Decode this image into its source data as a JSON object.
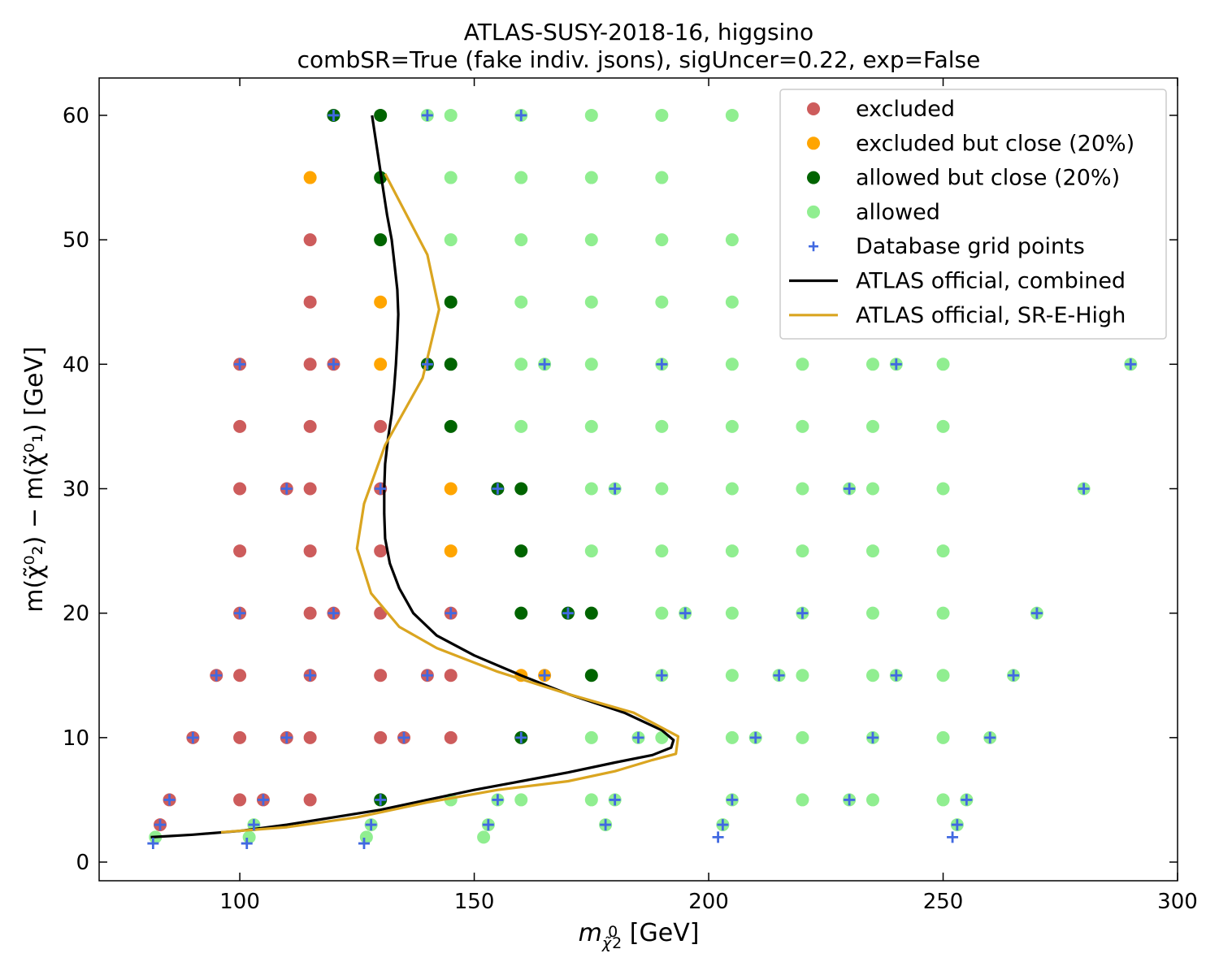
{
  "chart_data": {
    "type": "scatter",
    "title": "ATLAS-SUSY-2018-16, higgsino",
    "subtitle": "combSR=True (fake indiv. jsons), sigUncer=0.22, exp=False",
    "xlabel": {
      "symbol": "m",
      "sub": "χ̃",
      "subsup": "0",
      "subsub": "2",
      "unit": " [GeV]"
    },
    "ylabel": {
      "text": "m(χ̃⁰₂) − m(χ̃⁰₁) [GeV]",
      "unit": " [GeV]"
    },
    "xlim": [
      70,
      300
    ],
    "ylim": [
      -1.5,
      63
    ],
    "xticks": [
      100,
      150,
      200,
      250,
      300
    ],
    "yticks": [
      0,
      10,
      20,
      30,
      40,
      50,
      60
    ],
    "legend_position": "top-right",
    "colors": {
      "excluded": "#cd5c5c",
      "excluded_close": "#ffa500",
      "allowed_close": "#006400",
      "allowed": "#90ee90",
      "grid_points": "#4169e1",
      "combined_line": "#000000",
      "sr_line": "#daa520"
    },
    "series": [
      {
        "name": "excluded",
        "kind": "point",
        "color": "#cd5c5c",
        "points": [
          [
            83,
            3
          ],
          [
            85,
            5
          ],
          [
            90,
            10
          ],
          [
            95,
            15
          ],
          [
            100,
            40
          ],
          [
            100,
            35
          ],
          [
            100,
            30
          ],
          [
            100,
            25
          ],
          [
            100,
            20
          ],
          [
            100,
            15
          ],
          [
            100,
            10
          ],
          [
            100,
            5
          ],
          [
            105,
            5
          ],
          [
            110,
            30
          ],
          [
            110,
            10
          ],
          [
            115,
            50
          ],
          [
            115,
            45
          ],
          [
            115,
            40
          ],
          [
            115,
            35
          ],
          [
            115,
            30
          ],
          [
            115,
            25
          ],
          [
            115,
            20
          ],
          [
            115,
            15
          ],
          [
            115,
            10
          ],
          [
            115,
            5
          ],
          [
            120,
            40
          ],
          [
            120,
            20
          ],
          [
            130,
            35
          ],
          [
            130,
            30
          ],
          [
            130,
            25
          ],
          [
            130,
            20
          ],
          [
            130,
            15
          ],
          [
            130,
            10
          ],
          [
            135,
            10
          ],
          [
            140,
            15
          ],
          [
            145,
            20
          ],
          [
            145,
            15
          ],
          [
            145,
            10
          ]
        ]
      },
      {
        "name": "excluded but close (20%)",
        "kind": "point",
        "color": "#ffa500",
        "points": [
          [
            115,
            55
          ],
          [
            130,
            45
          ],
          [
            130,
            40
          ],
          [
            145,
            30
          ],
          [
            145,
            25
          ],
          [
            160,
            15
          ],
          [
            165,
            15
          ]
        ]
      },
      {
        "name": "allowed but close (20%)",
        "kind": "point",
        "color": "#006400",
        "points": [
          [
            120,
            60
          ],
          [
            130,
            60
          ],
          [
            130,
            55
          ],
          [
            130,
            50
          ],
          [
            145,
            45
          ],
          [
            140,
            40
          ],
          [
            145,
            40
          ],
          [
            145,
            35
          ],
          [
            155,
            30
          ],
          [
            160,
            30
          ],
          [
            160,
            25
          ],
          [
            160,
            20
          ],
          [
            170,
            20
          ],
          [
            175,
            20
          ],
          [
            175,
            15
          ],
          [
            160,
            10
          ],
          [
            130,
            5
          ]
        ]
      },
      {
        "name": "allowed",
        "kind": "point",
        "color": "#90ee90",
        "points": [
          [
            140,
            60
          ],
          [
            145,
            60
          ],
          [
            160,
            60
          ],
          [
            175,
            60
          ],
          [
            190,
            60
          ],
          [
            205,
            60
          ],
          [
            145,
            55
          ],
          [
            160,
            55
          ],
          [
            175,
            55
          ],
          [
            190,
            55
          ],
          [
            145,
            50
          ],
          [
            160,
            50
          ],
          [
            175,
            50
          ],
          [
            190,
            50
          ],
          [
            205,
            50
          ],
          [
            160,
            45
          ],
          [
            175,
            45
          ],
          [
            190,
            45
          ],
          [
            205,
            45
          ],
          [
            160,
            40
          ],
          [
            165,
            40
          ],
          [
            175,
            40
          ],
          [
            190,
            40
          ],
          [
            205,
            40
          ],
          [
            220,
            40
          ],
          [
            235,
            40
          ],
          [
            240,
            40
          ],
          [
            250,
            40
          ],
          [
            290,
            40
          ],
          [
            160,
            35
          ],
          [
            175,
            35
          ],
          [
            190,
            35
          ],
          [
            205,
            35
          ],
          [
            220,
            35
          ],
          [
            235,
            35
          ],
          [
            250,
            35
          ],
          [
            175,
            30
          ],
          [
            180,
            30
          ],
          [
            190,
            30
          ],
          [
            205,
            30
          ],
          [
            220,
            30
          ],
          [
            230,
            30
          ],
          [
            235,
            30
          ],
          [
            250,
            30
          ],
          [
            280,
            30
          ],
          [
            175,
            25
          ],
          [
            190,
            25
          ],
          [
            205,
            25
          ],
          [
            220,
            25
          ],
          [
            235,
            25
          ],
          [
            250,
            25
          ],
          [
            190,
            20
          ],
          [
            195,
            20
          ],
          [
            205,
            20
          ],
          [
            220,
            20
          ],
          [
            235,
            20
          ],
          [
            250,
            20
          ],
          [
            270,
            20
          ],
          [
            190,
            15
          ],
          [
            205,
            15
          ],
          [
            215,
            15
          ],
          [
            220,
            15
          ],
          [
            235,
            15
          ],
          [
            240,
            15
          ],
          [
            250,
            15
          ],
          [
            265,
            15
          ],
          [
            175,
            10
          ],
          [
            185,
            10
          ],
          [
            190,
            10
          ],
          [
            205,
            10
          ],
          [
            210,
            10
          ],
          [
            220,
            10
          ],
          [
            235,
            10
          ],
          [
            250,
            10
          ],
          [
            260,
            10
          ],
          [
            145,
            5
          ],
          [
            155,
            5
          ],
          [
            160,
            5
          ],
          [
            175,
            5
          ],
          [
            180,
            5
          ],
          [
            205,
            5
          ],
          [
            220,
            5
          ],
          [
            230,
            5
          ],
          [
            235,
            5
          ],
          [
            250,
            5
          ],
          [
            255,
            5
          ],
          [
            82,
            2
          ],
          [
            102,
            2
          ],
          [
            103,
            3
          ],
          [
            127,
            2
          ],
          [
            128,
            3
          ],
          [
            152,
            2
          ],
          [
            153,
            3
          ],
          [
            178,
            3
          ],
          [
            203,
            3
          ],
          [
            253,
            3
          ]
        ]
      },
      {
        "name": "Database grid points",
        "kind": "cross",
        "color": "#4169e1",
        "points": [
          [
            120,
            60
          ],
          [
            140,
            60
          ],
          [
            160,
            60
          ],
          [
            100,
            40
          ],
          [
            120,
            40
          ],
          [
            140,
            40
          ],
          [
            165,
            40
          ],
          [
            190,
            40
          ],
          [
            240,
            40
          ],
          [
            290,
            40
          ],
          [
            110,
            30
          ],
          [
            130,
            30
          ],
          [
            155,
            30
          ],
          [
            180,
            30
          ],
          [
            230,
            30
          ],
          [
            280,
            30
          ],
          [
            100,
            20
          ],
          [
            120,
            20
          ],
          [
            145,
            20
          ],
          [
            170,
            20
          ],
          [
            195,
            20
          ],
          [
            220,
            20
          ],
          [
            270,
            20
          ],
          [
            95,
            15
          ],
          [
            115,
            15
          ],
          [
            140,
            15
          ],
          [
            165,
            15
          ],
          [
            190,
            15
          ],
          [
            215,
            15
          ],
          [
            240,
            15
          ],
          [
            265,
            15
          ],
          [
            90,
            10
          ],
          [
            110,
            10
          ],
          [
            135,
            10
          ],
          [
            160,
            10
          ],
          [
            185,
            10
          ],
          [
            210,
            10
          ],
          [
            235,
            10
          ],
          [
            260,
            10
          ],
          [
            85,
            5
          ],
          [
            105,
            5
          ],
          [
            130,
            5
          ],
          [
            155,
            5
          ],
          [
            180,
            5
          ],
          [
            205,
            5
          ],
          [
            230,
            5
          ],
          [
            255,
            5
          ],
          [
            83,
            3
          ],
          [
            103,
            3
          ],
          [
            128,
            3
          ],
          [
            153,
            3
          ],
          [
            178,
            3
          ],
          [
            203,
            3
          ],
          [
            253,
            3
          ],
          [
            81.5,
            1.5
          ],
          [
            101.5,
            1.5
          ],
          [
            126.5,
            1.5
          ],
          [
            202,
            2
          ],
          [
            252,
            2
          ]
        ]
      },
      {
        "name": "ATLAS official, combined",
        "kind": "line",
        "color": "#000000",
        "points": [
          [
            81,
            2
          ],
          [
            90,
            2.2
          ],
          [
            100,
            2.5
          ],
          [
            110,
            3
          ],
          [
            120,
            3.6
          ],
          [
            130,
            4.2
          ],
          [
            140,
            5
          ],
          [
            150,
            5.8
          ],
          [
            160,
            6.5
          ],
          [
            170,
            7.2
          ],
          [
            180,
            8
          ],
          [
            188,
            8.6
          ],
          [
            192,
            9.2
          ],
          [
            192.5,
            9.8
          ],
          [
            190,
            10.6
          ],
          [
            182,
            12
          ],
          [
            170,
            13.5
          ],
          [
            160,
            15
          ],
          [
            150,
            16.6
          ],
          [
            142,
            18.2
          ],
          [
            137,
            20
          ],
          [
            134,
            22
          ],
          [
            132,
            24
          ],
          [
            131,
            26
          ],
          [
            130.8,
            28
          ],
          [
            130.8,
            30
          ],
          [
            131,
            32
          ],
          [
            131.6,
            34
          ],
          [
            132.4,
            36
          ],
          [
            132.9,
            38
          ],
          [
            133.3,
            40
          ],
          [
            133.6,
            42
          ],
          [
            133.8,
            44
          ],
          [
            133.6,
            46
          ],
          [
            133,
            48
          ],
          [
            132.4,
            50
          ],
          [
            131.4,
            52
          ],
          [
            130.6,
            54
          ],
          [
            129.8,
            56
          ],
          [
            129,
            58
          ],
          [
            128.2,
            60
          ]
        ]
      },
      {
        "name": "ATLAS official, SR-E-High",
        "kind": "line",
        "color": "#daa520",
        "points": [
          [
            96,
            2.4
          ],
          [
            110,
            2.8
          ],
          [
            125,
            3.6
          ],
          [
            140,
            4.8
          ],
          [
            155,
            5.8
          ],
          [
            170,
            6.5
          ],
          [
            180,
            7.3
          ],
          [
            188,
            8.2
          ],
          [
            193,
            8.7
          ],
          [
            193.5,
            10.1
          ],
          [
            184,
            12
          ],
          [
            170,
            13.5
          ],
          [
            155,
            15.3
          ],
          [
            142,
            17.2
          ],
          [
            134,
            18.9
          ],
          [
            128,
            21.6
          ],
          [
            125,
            25.2
          ],
          [
            126.5,
            28.8
          ],
          [
            131,
            33.5
          ],
          [
            139,
            38.9
          ],
          [
            142.5,
            44.4
          ],
          [
            140,
            48.8
          ],
          [
            131,
            55.3
          ]
        ]
      }
    ]
  }
}
